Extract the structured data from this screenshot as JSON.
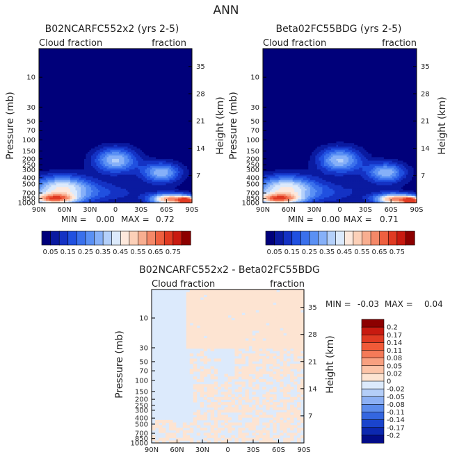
{
  "figure_title": "ANN",
  "chart_data": [
    {
      "type": "contour",
      "title": "B02NCARFC552x2 (yrs 2-5)",
      "variable_left": "Cloud fraction",
      "variable_right": "fraction",
      "xlabel": "",
      "ylabel": "Pressure (mb)",
      "ylabel_right": "Height (km)",
      "x_ticks": [
        "90N",
        "60N",
        "30N",
        "0",
        "30S",
        "60S",
        "90S"
      ],
      "y_ticks": [
        10,
        30,
        50,
        70,
        100,
        150,
        200,
        250,
        300,
        400,
        500,
        700,
        850,
        1000
      ],
      "y_ticks_right": [
        35,
        28,
        21,
        14,
        7
      ],
      "y_scale": "log",
      "ylim": [
        1000,
        3.5
      ],
      "min_label": "MIN =",
      "min_value": "0.00",
      "max_label": "MAX =",
      "max_value": "0.72",
      "colorbar_labels": [
        "0.05",
        "0.15",
        "0.25",
        "0.35",
        "0.45",
        "0.55",
        "0.65",
        "0.75"
      ],
      "colors": [
        "#00007a",
        "#0a1aa0",
        "#1432c4",
        "#2050e0",
        "#3a70ec",
        "#5a90f4",
        "#86b0f8",
        "#b4d0fa",
        "#dceafc",
        "#fde8dc",
        "#fcd0b8",
        "#f8ae90",
        "#f48868",
        "#ee6040",
        "#e03a22",
        "#c81a10",
        "#8c0000"
      ]
    },
    {
      "type": "contour",
      "title": "Beta02FC55BDG (yrs 2-5)",
      "variable_left": "Cloud fraction",
      "variable_right": "fraction",
      "xlabel": "",
      "ylabel": "Pressure (mb)",
      "ylabel_right": "Height (km)",
      "x_ticks": [
        "90N",
        "60N",
        "30N",
        "0",
        "30S",
        "60S",
        "90S"
      ],
      "y_ticks": [
        10,
        30,
        50,
        70,
        100,
        150,
        200,
        250,
        300,
        400,
        500,
        700,
        850,
        1000
      ],
      "y_ticks_right": [
        35,
        28,
        21,
        14,
        7
      ],
      "y_scale": "log",
      "ylim": [
        1000,
        3.5
      ],
      "min_label": "MIN =",
      "min_value": "0.00",
      "max_label": "MAX =",
      "max_value": "0.71",
      "colorbar_labels": [
        "0.05",
        "0.15",
        "0.25",
        "0.35",
        "0.45",
        "0.55",
        "0.65",
        "0.75"
      ],
      "colors": [
        "#00007a",
        "#0a1aa0",
        "#1432c4",
        "#2050e0",
        "#3a70ec",
        "#5a90f4",
        "#86b0f8",
        "#b4d0fa",
        "#dceafc",
        "#fde8dc",
        "#fcd0b8",
        "#f8ae90",
        "#f48868",
        "#ee6040",
        "#e03a22",
        "#c81a10",
        "#8c0000"
      ]
    },
    {
      "type": "contour",
      "title": "B02NCARFC552x2 - Beta02FC55BDG",
      "variable_left": "Cloud fraction",
      "variable_right": "fraction",
      "xlabel": "",
      "ylabel": "Pressure (mb)",
      "ylabel_right": "Height (km)",
      "x_ticks": [
        "90N",
        "60N",
        "30N",
        "0",
        "30S",
        "60S",
        "90S"
      ],
      "y_ticks": [
        10,
        30,
        50,
        70,
        100,
        150,
        200,
        250,
        300,
        400,
        500,
        700,
        850,
        1000
      ],
      "y_ticks_right": [
        35,
        28,
        21,
        14,
        7
      ],
      "y_scale": "log",
      "ylim": [
        1000,
        3.5
      ],
      "min_label": "MIN =",
      "min_value": "-0.03",
      "max_label": "MAX =",
      "max_value": "0.04",
      "colorbar_labels": [
        "0.2",
        "0.17",
        "0.14",
        "0.11",
        "0.08",
        "0.05",
        "0.02",
        "0",
        "-0.02",
        "-0.05",
        "-0.08",
        "-0.11",
        "-0.14",
        "-0.17",
        "-0.2"
      ],
      "colors": [
        "#8c0000",
        "#c81a10",
        "#e03a22",
        "#f05a38",
        "#f47a58",
        "#f8a080",
        "#fcc4a8",
        "#fde4d2",
        "#dceafc",
        "#b4cef8",
        "#8cb0f4",
        "#5c8cec",
        "#3466e0",
        "#1a44cc",
        "#0c28b0",
        "#020c88"
      ],
      "diff_fields": {
        "positive": "#fde4d2",
        "negative": "#dceafc"
      }
    }
  ]
}
